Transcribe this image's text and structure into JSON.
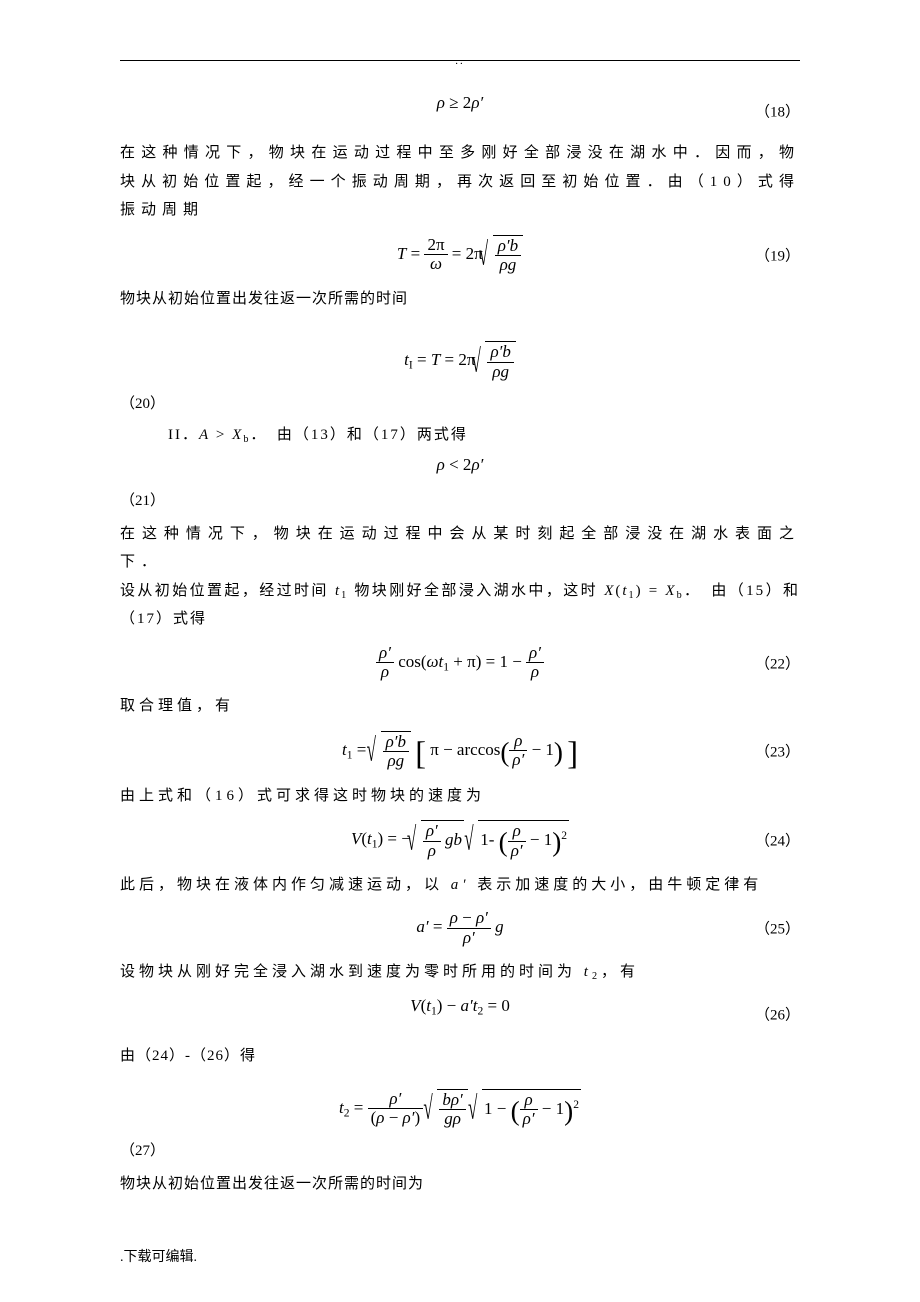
{
  "header": {
    "mark": ".."
  },
  "eq18": {
    "body_html": "<span class='it'>ρ</span> ≥ 2<span class='it'>ρ′</span>",
    "num": "（18）"
  },
  "p1": "在这种情况下，物块在运动过程中至多刚好全部浸没在湖水中．因而，物块从初始位置起，经一个振动周期，再次返回至初始位置．由（10）式得振动周期",
  "eq19": {
    "body_html": "<span class='it'>T</span> = <span class='frac'><span class='num'>2π</span><span class='den'><span class='it'>ω</span></span></span> = 2π<span class='sqrt'><span class='rad'><span class='frac'><span class='num'><span class='it'>ρ′b</span></span><span class='den'><span class='it'>ρg</span></span></span></span></span>",
    "num": "（19）"
  },
  "p2": "物块从初始位置出发往返一次所需的时间",
  "eq20": {
    "body_html": "<span class='it'>t</span><span class='sub'>I</span> = <span class='it'>T</span> = 2π<span class='sqrt'><span class='rad'><span class='frac'><span class='num'><span class='it'>ρ′b</span></span><span class='den'><span class='it'>ρg</span></span></span></span></span>",
    "num": "（20）"
  },
  "case2": "II．<span class='it'>A</span> &gt; <span class='it'>X</span><span class='sub'>b</span>．　由（13）和（17）两式得",
  "eq21": {
    "body_html": "<span class='it'>ρ</span> &lt; 2<span class='it'>ρ′</span>",
    "num": "（21）"
  },
  "p3": "在这种情况下，物块在运动过程中会从某时刻起全部浸没在湖水表面之下．",
  "p4": "设从初始位置起，经过时间 <span class='it'>t</span><span class='sub'>1</span> 物块刚好全部浸入湖水中，这时 <span class='it'>X</span>(<span class='it'>t</span><span class='sub'>1</span>) = <span class='it'>X</span><span class='sub'>b</span>．　由（15）和（17）式得",
  "eq22": {
    "body_html": "<span class='frac'><span class='num'><span class='it'>ρ′</span></span><span class='den'><span class='it'>ρ</span></span></span> cos(<span class='it'>ωt</span><span class='sub'>1</span> + π) = 1 − <span class='frac'><span class='num'><span class='it'>ρ′</span></span><span class='den'><span class='it'>ρ</span></span></span>",
    "num": "（22）"
  },
  "p5": "取合理值，有",
  "eq23": {
    "body_html": "<span class='it'>t</span><span class='sub'>1</span> = <span class='sqrt'><span class='rad'><span class='frac'><span class='num'><span class='it'>ρ′b</span></span><span class='den'><span class='it'>ρg</span></span></span></span></span> <span class='bigbrack'>[</span> π − arccos<span class='bigparen'>(</span><span class='frac'><span class='num'><span class='it'>ρ</span></span><span class='den'><span class='it'>ρ′</span></span></span> − 1<span class='bigparen'>)</span> <span class='bigbrack'>]</span>",
    "num": "（23）"
  },
  "p6": "由上式和（16）式可求得这时物块的速度为",
  "eq24": {
    "body_html": "<span class='it'>V</span>(<span class='it'>t</span><span class='sub'>1</span>) = −<span class='sqrt'><span class='rad'><span class='frac'><span class='num'><span class='it'>ρ′</span></span><span class='den'><span class='it'>ρ</span></span></span> <span class='it'>gb</span></span></span> <span class='sqrt'><span class='rad'>1- <span class='bigparen'>(</span><span class='frac'><span class='num'><span class='it'>ρ</span></span><span class='den'><span class='it'>ρ′</span></span></span> − 1<span class='bigparen'>)</span><span class='sup'>2</span></span></span>",
    "num": "（24）"
  },
  "p7": "此后，物块在液体内作匀减速运动，以 <span class='it'>a′</span> 表示加速度的大小，由牛顿定律有",
  "eq25": {
    "body_html": "<span class='it'>a′</span> = <span class='frac'><span class='num'><span class='it'>ρ</span> − <span class='it'>ρ′</span></span><span class='den'><span class='it'>ρ′</span></span></span> <span class='it'>g</span>",
    "num": "（25）"
  },
  "p8": "设物块从刚好完全浸入湖水到速度为零时所用的时间为 <span class='it'>t</span><span class='sub'>2</span>，有",
  "eq26": {
    "body_html": "<span class='it'>V</span>(<span class='it'>t</span><span class='sub'>1</span>) − <span class='it'>a′t</span><span class='sub'>2</span> = 0",
    "num": "（26）"
  },
  "p9": "由（24）-（26）得",
  "eq27": {
    "body_html": "<span class='it'>t</span><span class='sub'>2</span> = <span class='frac'><span class='num'><span class='it'>ρ′</span></span><span class='den'>(<span class='it'>ρ</span> − <span class='it'>ρ′</span>)</span></span> <span class='sqrt'><span class='rad'><span class='frac'><span class='num'><span class='it'>bρ′</span></span><span class='den'><span class='it'>gρ</span></span></span></span></span> <span class='sqrt'><span class='rad'>1 − <span class='bigparen'>(</span><span class='frac'><span class='num'><span class='it'>ρ</span></span><span class='den'><span class='it'>ρ′</span></span></span> − 1<span class='bigparen'>)</span><span class='sup'>2</span></span></span>",
    "num": "（27）"
  },
  "p10": "物块从初始位置出发往返一次所需的时间为",
  "footer": ".下载可编辑."
}
